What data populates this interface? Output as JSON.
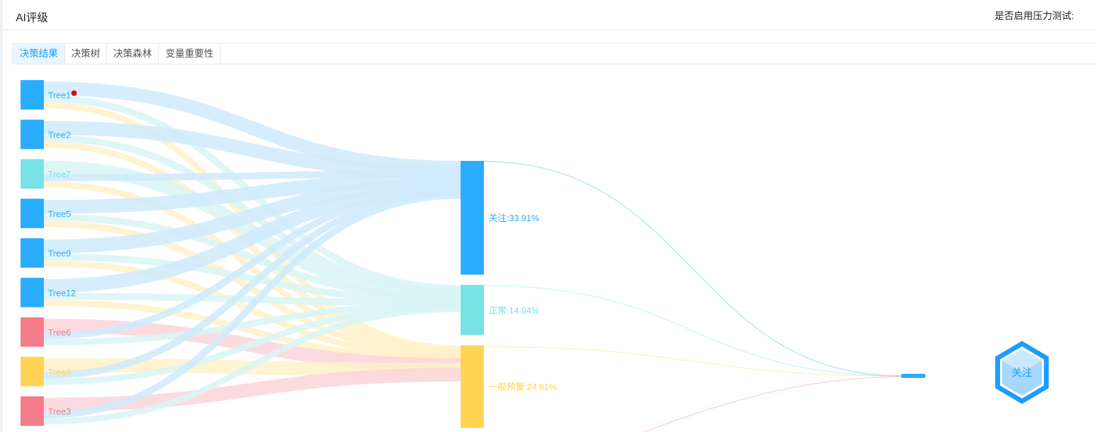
{
  "header": {
    "title": "AI评级",
    "right_label": "是否启用压力测试:"
  },
  "tabs": [
    {
      "label": "决策结果",
      "active": true
    },
    {
      "label": "决策树",
      "active": false
    },
    {
      "label": "决策森林",
      "active": false
    },
    {
      "label": "变量重要性",
      "active": false
    }
  ],
  "colors": {
    "attention": "#2aadff",
    "normal": "#76e2e6",
    "warning": "#ffd455",
    "risk": "#f47c8b"
  },
  "chart_data": {
    "type": "sankey",
    "source_nodes": [
      {
        "name": "Tree1",
        "category": "attention"
      },
      {
        "name": "Tree2",
        "category": "attention"
      },
      {
        "name": "Tree7",
        "category": "normal"
      },
      {
        "name": "Tree5",
        "category": "attention"
      },
      {
        "name": "Tree9",
        "category": "attention"
      },
      {
        "name": "Tree12",
        "category": "attention"
      },
      {
        "name": "Tree6",
        "category": "risk"
      },
      {
        "name": "Tree8",
        "category": "warning"
      },
      {
        "name": "Tree3",
        "category": "risk"
      }
    ],
    "target_nodes": [
      {
        "name": "关注",
        "percent": 33.91,
        "label": "关注:33.91%",
        "category": "attention"
      },
      {
        "name": "正常",
        "percent": 14.94,
        "label": "正常:14.94%",
        "category": "normal"
      },
      {
        "name": "一般预警",
        "percent": 24.61,
        "label": "一般预警:24.61%",
        "category": "warning"
      }
    ],
    "final_result": {
      "label": "关注",
      "category": "attention"
    }
  }
}
